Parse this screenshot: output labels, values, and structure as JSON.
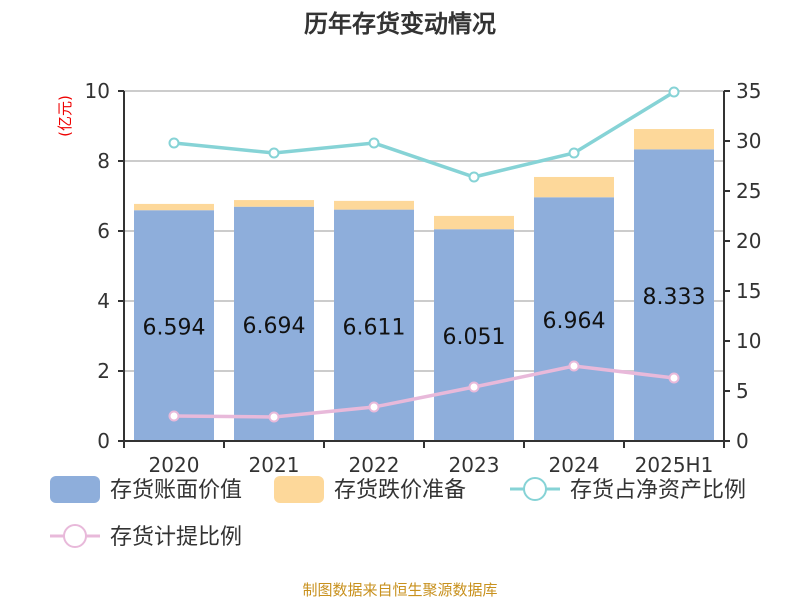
{
  "chart_data": {
    "type": "bar",
    "title": "历年存货变动情况",
    "categories": [
      "2020",
      "2021",
      "2022",
      "2023",
      "2024",
      "2025H1"
    ],
    "left_axis": {
      "label": "(亿元)",
      "range": [
        0,
        10
      ],
      "ticks": [
        0,
        2,
        4,
        6,
        8,
        10
      ]
    },
    "right_axis": {
      "label": "",
      "range": [
        0,
        35
      ],
      "ticks": [
        0,
        5,
        10,
        15,
        20,
        25,
        30,
        35
      ]
    },
    "grid": true,
    "legend_position": "bottom",
    "series": [
      {
        "name": "存货账面价值",
        "type": "bar",
        "stack": "total",
        "axis": "left",
        "color": "#8eaedb",
        "values": [
          6.594,
          6.694,
          6.611,
          6.051,
          6.964,
          8.333
        ],
        "show_labels": true
      },
      {
        "name": "存货跌价准备",
        "type": "bar",
        "stack": "total",
        "axis": "left",
        "color": "#fdd89a",
        "values": [
          0.18,
          0.19,
          0.25,
          0.38,
          0.58,
          0.58
        ]
      },
      {
        "name": "存货占净资产比例",
        "type": "line",
        "axis": "right",
        "color": "#86d3d6",
        "values": [
          29.8,
          28.8,
          29.8,
          26.4,
          28.8,
          34.9
        ]
      },
      {
        "name": "存货计提比例",
        "type": "line",
        "axis": "right",
        "color": "#e8b9da",
        "values": [
          2.5,
          2.4,
          3.4,
          5.4,
          7.5,
          6.3
        ]
      }
    ],
    "source": "制图数据来自恒生聚源数据库"
  }
}
